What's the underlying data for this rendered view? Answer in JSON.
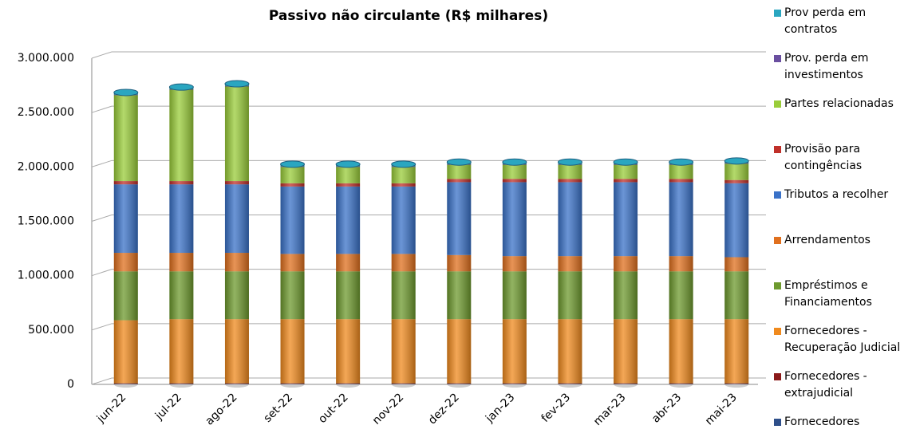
{
  "chart_data": {
    "type": "bar",
    "stacked": true,
    "title": "Passivo não circulante (R$ milhares)",
    "categories": [
      "jun-22",
      "jul-22",
      "ago-22",
      "set-22",
      "out-22",
      "nov-22",
      "dez-22",
      "jan-23",
      "fev-23",
      "mar-23",
      "abr-23",
      "mai-23"
    ],
    "series": [
      {
        "name": "Fornecedores",
        "color": "#2e4f8a",
        "values": [
          5000,
          5000,
          5000,
          5000,
          5000,
          5000,
          5000,
          5000,
          5000,
          5000,
          5000,
          5000
        ]
      },
      {
        "name": "Fornecedores - extrajudicial",
        "color": "#8b1a1a",
        "values": [
          5000,
          5000,
          5000,
          5000,
          5000,
          5000,
          5000,
          5000,
          5000,
          5000,
          5000,
          5000
        ]
      },
      {
        "name": "Fornecedores - Recuperação Judicial",
        "color": "#f08a1e",
        "values": [
          580000,
          590000,
          590000,
          590000,
          590000,
          590000,
          590000,
          590000,
          590000,
          590000,
          590000,
          590000
        ]
      },
      {
        "name": "Empréstimos e Financiamentos",
        "color": "#6e9a2e",
        "values": [
          450000,
          440000,
          440000,
          440000,
          440000,
          440000,
          440000,
          440000,
          440000,
          440000,
          440000,
          440000
        ]
      },
      {
        "name": "Arrendamentos",
        "color": "#e0701e",
        "values": [
          170000,
          170000,
          170000,
          160000,
          160000,
          160000,
          150000,
          140000,
          140000,
          140000,
          140000,
          130000
        ]
      },
      {
        "name": "Tributos a recolher",
        "color": "#3a72c8",
        "values": [
          630000,
          630000,
          630000,
          620000,
          620000,
          620000,
          670000,
          680000,
          680000,
          680000,
          680000,
          680000
        ]
      },
      {
        "name": "Provisão para contingências",
        "color": "#c0302a",
        "values": [
          30000,
          30000,
          30000,
          30000,
          30000,
          30000,
          30000,
          30000,
          30000,
          30000,
          30000,
          30000
        ]
      },
      {
        "name": "Partes relacionadas",
        "color": "#9acd3a",
        "values": [
          790000,
          840000,
          870000,
          150000,
          150000,
          150000,
          130000,
          130000,
          130000,
          130000,
          130000,
          150000
        ]
      },
      {
        "name": "Prov. perda em investimentos",
        "color": "#6a4fa0",
        "values": [
          5000,
          5000,
          5000,
          5000,
          5000,
          5000,
          5000,
          5000,
          5000,
          5000,
          5000,
          5000
        ]
      },
      {
        "name": "Prov perda em contratos",
        "color": "#2aa6c0",
        "values": [
          20000,
          20000,
          20000,
          20000,
          20000,
          20000,
          20000,
          20000,
          20000,
          20000,
          20000,
          20000
        ]
      }
    ],
    "ylim": [
      0,
      3000000
    ],
    "yticks": [
      0,
      {
        "value": 500000,
        "label": "500.000"
      },
      {
        "value": 1000000,
        "label": "1.000.000"
      },
      {
        "value": 1500000,
        "label": "1.500.000"
      },
      {
        "value": 2000000,
        "label": "2.000.000"
      },
      {
        "value": 2500000,
        "label": "2.500.000"
      },
      {
        "value": 3000000,
        "label": "3.000.000"
      }
    ],
    "grid": true,
    "legend": "right"
  }
}
